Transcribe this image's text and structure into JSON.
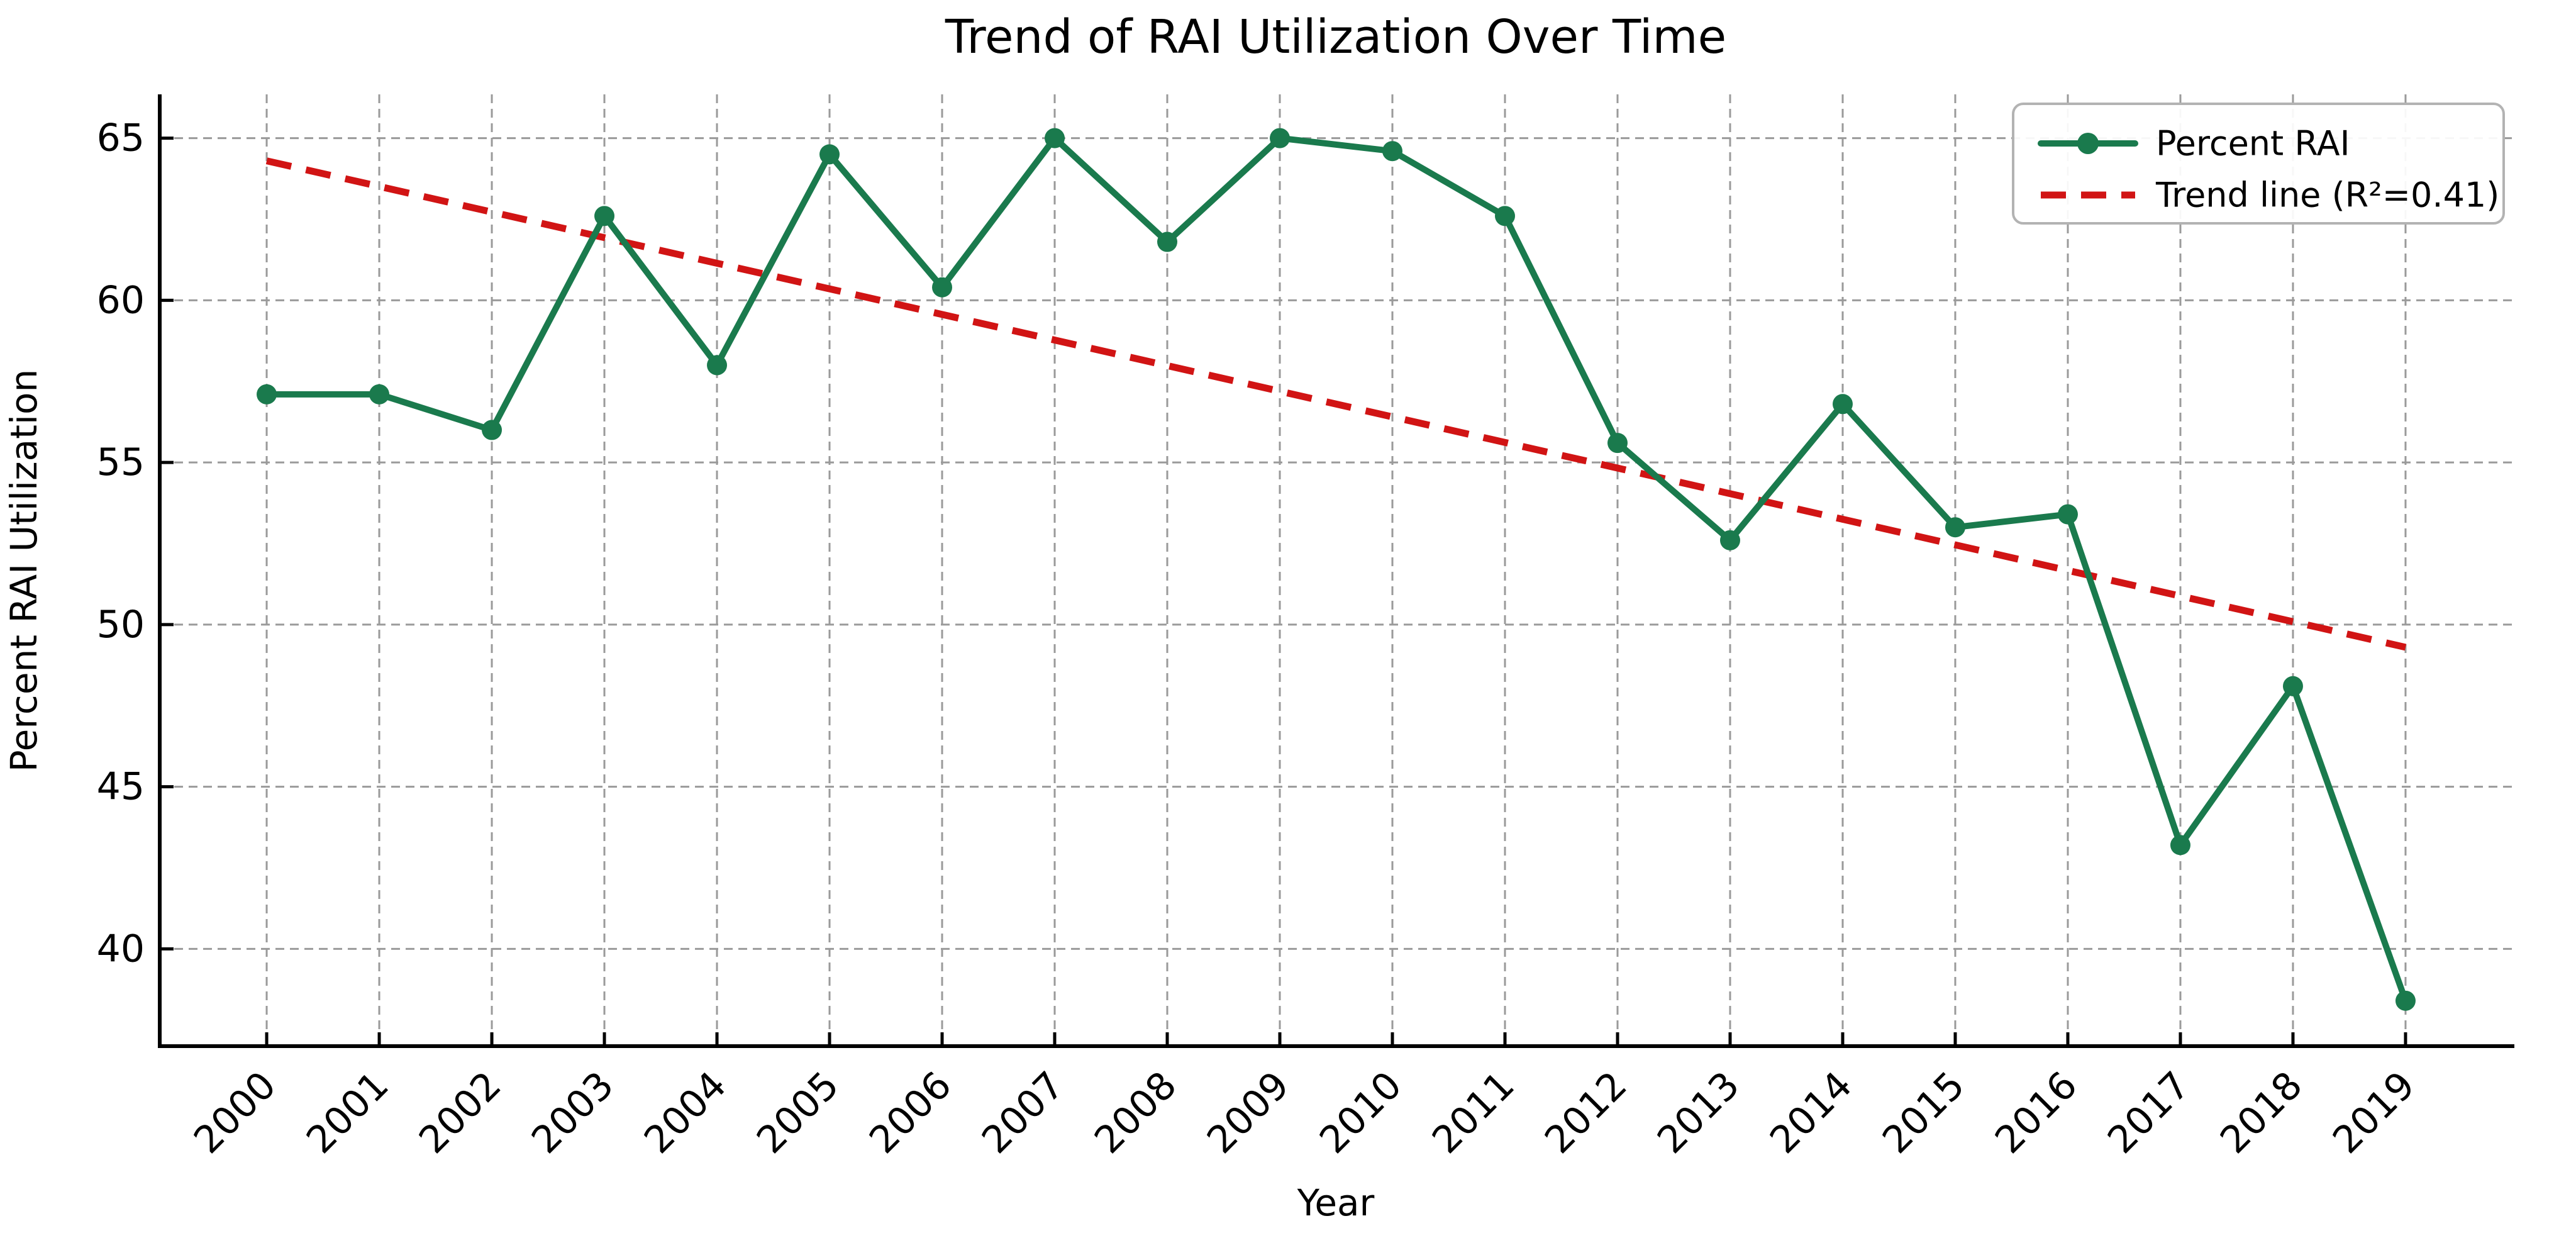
{
  "figure": {
    "background": "#ffffff"
  },
  "chart_data": {
    "type": "line",
    "title": "Trend of RAI Utilization Over Time",
    "xlabel": "Year",
    "ylabel": "Percent RAI Utilization",
    "categories": [
      2000,
      2001,
      2002,
      2003,
      2004,
      2005,
      2006,
      2007,
      2008,
      2009,
      2010,
      2011,
      2012,
      2013,
      2014,
      2015,
      2016,
      2017,
      2018,
      2019
    ],
    "series": [
      {
        "name": "Percent RAI",
        "type": "line-markers",
        "color": "#1a7a4d",
        "marker": "circle",
        "values": [
          57.1,
          57.1,
          56.0,
          62.6,
          58.0,
          64.5,
          60.4,
          65.0,
          61.8,
          65.0,
          64.6,
          62.6,
          55.6,
          52.6,
          56.8,
          53.0,
          53.4,
          43.2,
          48.1,
          38.4
        ]
      },
      {
        "name": "Trend line (R²=0.41)",
        "type": "trend-dashed",
        "color": "#d11414",
        "x": [
          2000,
          2019
        ],
        "values": [
          64.3,
          49.3
        ],
        "r_squared": 0.41
      }
    ],
    "xticks": [
      2000,
      2001,
      2002,
      2003,
      2004,
      2005,
      2006,
      2007,
      2008,
      2009,
      2010,
      2011,
      2012,
      2013,
      2014,
      2015,
      2016,
      2017,
      2018,
      2019
    ],
    "xtick_rotation": 45,
    "yticks": [
      40,
      45,
      50,
      55,
      60,
      65
    ],
    "xlim": [
      1999.05,
      2019.95
    ],
    "ylim": [
      37.0,
      66.35
    ],
    "grid": true,
    "grid_color": "#9a9a9a",
    "axis_color": "#000000",
    "legend_position": "upper right",
    "legend_border_color": "#b3b3b3",
    "legend_background": "#ffffff"
  }
}
